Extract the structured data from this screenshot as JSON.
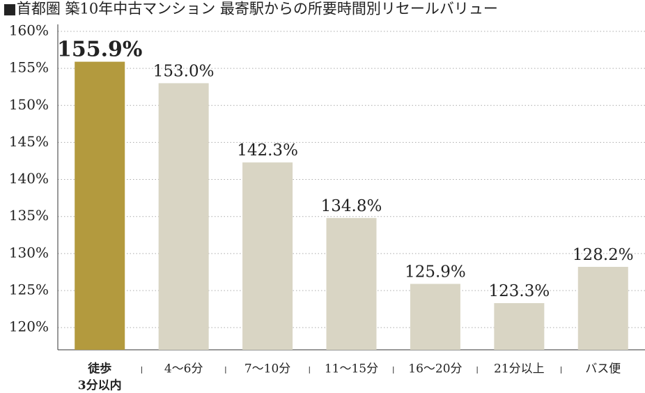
{
  "chart_data": {
    "type": "bar",
    "title": "■首都圏 築10年中古マンション 最寄駅からの所要時間別リセールバリュー",
    "categories": [
      [
        "徒歩",
        "3分以内"
      ],
      [
        "4〜6分"
      ],
      [
        "7〜10分"
      ],
      [
        "11〜15分"
      ],
      [
        "16〜20分"
      ],
      [
        "21分以上"
      ],
      [
        "バス便"
      ]
    ],
    "values": [
      155.9,
      153.0,
      142.3,
      134.8,
      125.9,
      123.3,
      128.2
    ],
    "value_labels": [
      "155.9%",
      "153.0%",
      "142.3%",
      "134.8%",
      "125.9%",
      "123.3%",
      "128.2%"
    ],
    "colors": [
      "#b39a3e",
      "#d9d5c4",
      "#d9d5c4",
      "#d9d5c4",
      "#d9d5c4",
      "#d9d5c4",
      "#d9d5c4"
    ],
    "value_label_colors": [
      "#b39a3e",
      "#222222",
      "#222222",
      "#222222",
      "#222222",
      "#222222",
      "#222222"
    ],
    "category_label_colors": [
      "#8b1a2a",
      "#222222",
      "#222222",
      "#222222",
      "#222222",
      "#222222",
      "#222222"
    ],
    "ylim": [
      117,
      160
    ],
    "yticks": [
      {
        "value": 120,
        "label": "120%"
      },
      {
        "value": 125,
        "label": "125%"
      },
      {
        "value": 130,
        "label": "130%"
      },
      {
        "value": 135,
        "label": "135%"
      },
      {
        "value": 140,
        "label": "140%"
      },
      {
        "value": 145,
        "label": "145%"
      },
      {
        "value": 150,
        "label": "150%"
      },
      {
        "value": 155,
        "label": "155%"
      },
      {
        "value": 160,
        "label": "160%"
      }
    ],
    "grid": true
  }
}
